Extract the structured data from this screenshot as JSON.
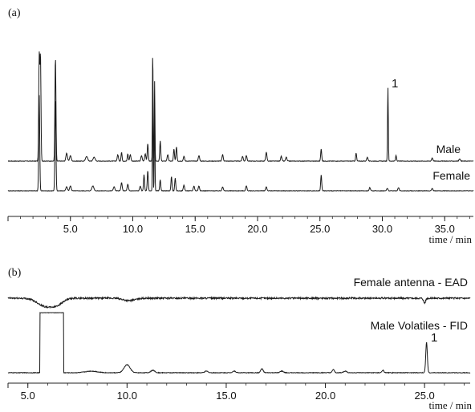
{
  "chart_data": [
    {
      "panel_label": "(a)",
      "type": "line",
      "xlabel": "time / min",
      "xlim": [
        0,
        37.3
      ],
      "xticks": [
        5.0,
        10.0,
        15.0,
        20.0,
        25.0,
        30.0,
        35.0
      ],
      "xtick_labels": [
        "5.0",
        "10.0",
        "15.0",
        "20.0",
        "25.0",
        "30.0",
        "35.0"
      ],
      "grid": false,
      "series": [
        {
          "name": "Male",
          "color": "#1a1a1a",
          "baseline": 0,
          "peaks": [
            [
              2.5,
              130,
              0.04
            ],
            [
              2.6,
              130,
              0.04
            ],
            [
              3.8,
              130,
              0.04
            ],
            [
              4.7,
              10,
              0.06
            ],
            [
              5.0,
              7,
              0.06
            ],
            [
              6.3,
              6,
              0.08
            ],
            [
              6.9,
              5,
              0.08
            ],
            [
              8.8,
              8,
              0.05
            ],
            [
              9.1,
              11,
              0.04
            ],
            [
              9.6,
              9,
              0.04
            ],
            [
              9.8,
              8,
              0.05
            ],
            [
              10.7,
              7,
              0.05
            ],
            [
              11.0,
              9,
              0.05
            ],
            [
              11.2,
              22,
              0.04
            ],
            [
              11.6,
              140,
              0.025
            ],
            [
              11.75,
              100,
              0.025
            ],
            [
              12.2,
              25,
              0.04
            ],
            [
              12.8,
              8,
              0.05
            ],
            [
              13.3,
              15,
              0.04
            ],
            [
              13.5,
              18,
              0.04
            ],
            [
              14.1,
              6,
              0.05
            ],
            [
              15.3,
              7,
              0.05
            ],
            [
              17.2,
              8,
              0.05
            ],
            [
              18.8,
              6,
              0.05
            ],
            [
              19.1,
              7,
              0.05
            ],
            [
              20.7,
              11,
              0.05
            ],
            [
              21.9,
              6,
              0.05
            ],
            [
              22.3,
              5,
              0.05
            ],
            [
              25.1,
              15,
              0.04
            ],
            [
              27.9,
              10,
              0.04
            ],
            [
              28.8,
              5,
              0.05
            ],
            [
              30.45,
              92,
              0.03
            ],
            [
              31.1,
              7,
              0.04
            ],
            [
              34.0,
              4,
              0.05
            ],
            [
              36.2,
              3,
              0.05
            ]
          ]
        },
        {
          "name": "Female",
          "color": "#1a1a1a",
          "baseline": 0,
          "peaks": [
            [
              2.5,
              120,
              0.04
            ],
            [
              3.8,
              115,
              0.04
            ],
            [
              4.7,
              5,
              0.06
            ],
            [
              5.0,
              6,
              0.06
            ],
            [
              6.8,
              6,
              0.08
            ],
            [
              8.5,
              5,
              0.06
            ],
            [
              9.1,
              10,
              0.05
            ],
            [
              9.6,
              8,
              0.05
            ],
            [
              10.6,
              6,
              0.05
            ],
            [
              10.9,
              20,
              0.04
            ],
            [
              11.2,
              25,
              0.04
            ],
            [
              11.6,
              150,
              0.025
            ],
            [
              11.75,
              110,
              0.025
            ],
            [
              12.2,
              14,
              0.04
            ],
            [
              13.1,
              18,
              0.04
            ],
            [
              13.4,
              16,
              0.04
            ],
            [
              14.1,
              7,
              0.05
            ],
            [
              14.9,
              6,
              0.05
            ],
            [
              15.3,
              6,
              0.05
            ],
            [
              17.2,
              5,
              0.05
            ],
            [
              19.1,
              6,
              0.05
            ],
            [
              20.7,
              5,
              0.05
            ],
            [
              25.1,
              20,
              0.04
            ],
            [
              29.0,
              4,
              0.05
            ],
            [
              30.4,
              3,
              0.05
            ],
            [
              31.3,
              4,
              0.05
            ],
            [
              34.0,
              3,
              0.05
            ]
          ]
        }
      ],
      "annotations": [
        {
          "text": "1",
          "x": 30.45,
          "series": "Male"
        }
      ],
      "series_labels": [
        "Male",
        "Female"
      ]
    },
    {
      "panel_label": "(b)",
      "type": "line",
      "xlabel": "time / min",
      "xlim": [
        4.0,
        27.3
      ],
      "xticks": [
        5.0,
        10.0,
        15.0,
        20.0,
        25.0
      ],
      "xtick_labels": [
        "5.0",
        "10.0",
        "15.0",
        "20.0",
        "25.0"
      ],
      "grid": false,
      "series": [
        {
          "name": "Female antenna - EAD",
          "color": "#1a1a1a",
          "baseline": 0,
          "noise": 2,
          "dips": [
            [
              5.9,
              -10,
              0.4
            ],
            [
              6.5,
              -6,
              0.3
            ],
            [
              25.0,
              -6,
              0.05
            ],
            [
              10.1,
              -3,
              0.3
            ]
          ]
        },
        {
          "name": "Male Volatiles - FID",
          "color": "#1a1a1a",
          "baseline": 0,
          "noise": 0.8,
          "plateau": [
            5.6,
            6.8,
            75
          ],
          "peaks": [
            [
              10.0,
              10,
              0.15
            ],
            [
              8.2,
              2,
              0.3
            ],
            [
              11.3,
              3,
              0.1
            ],
            [
              14.0,
              2,
              0.08
            ],
            [
              15.4,
              2,
              0.08
            ],
            [
              16.8,
              5,
              0.06
            ],
            [
              17.8,
              2,
              0.08
            ],
            [
              20.4,
              4,
              0.05
            ],
            [
              21.0,
              2,
              0.08
            ],
            [
              22.9,
              3,
              0.05
            ],
            [
              25.1,
              38,
              0.04
            ]
          ]
        }
      ],
      "annotations": [
        {
          "text": "1",
          "x": 25.1,
          "series": "Male Volatiles - FID"
        }
      ],
      "series_labels": [
        "Female antenna - EAD",
        "Male Volatiles - FID"
      ]
    }
  ]
}
